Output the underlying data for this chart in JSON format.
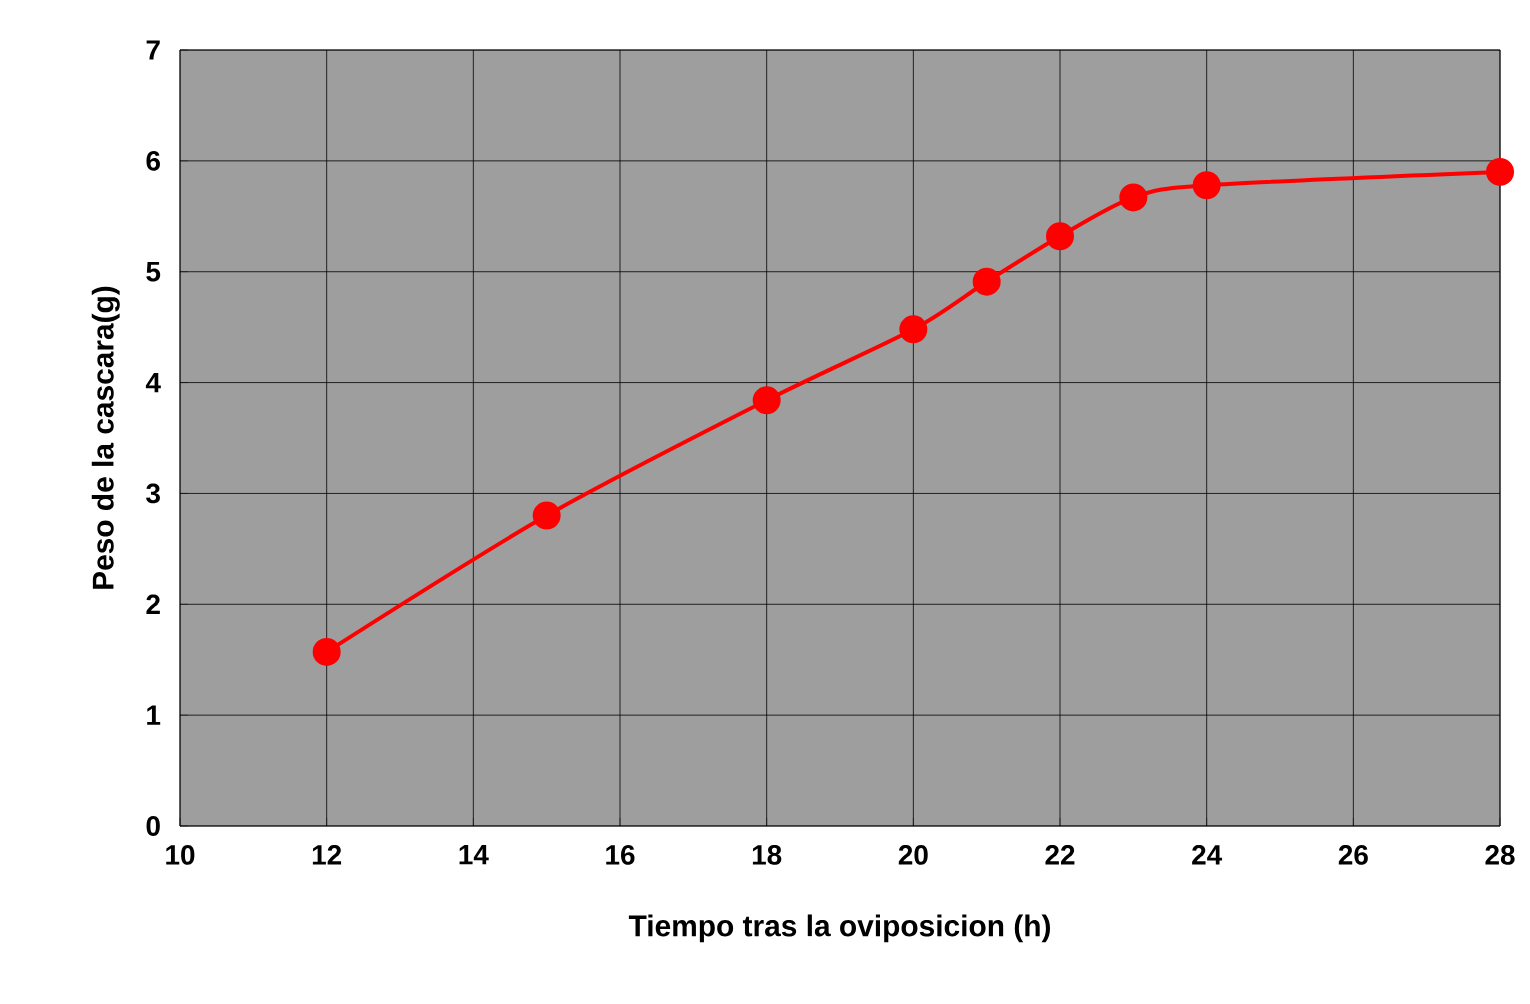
{
  "chart_data": {
    "type": "line",
    "xlabel": "Tiempo tras la oviposicion  (h)",
    "ylabel": "Peso de la cascara(g)",
    "x": [
      12,
      15,
      18,
      20,
      21,
      22,
      23,
      24,
      28
    ],
    "series": [
      {
        "color": "#ff0000",
        "values": [
          1.57,
          2.8,
          3.84,
          4.48,
          4.91,
          5.32,
          5.67,
          5.78,
          5.9
        ]
      }
    ],
    "xlim": [
      10,
      28
    ],
    "ylim": [
      0,
      7
    ],
    "xticks": [
      10,
      12,
      14,
      16,
      18,
      20,
      22,
      24,
      26,
      28
    ],
    "yticks": [
      0,
      1,
      2,
      3,
      4,
      5,
      6,
      7
    ],
    "grid": true,
    "marker": "circle",
    "line_style": "solid"
  }
}
